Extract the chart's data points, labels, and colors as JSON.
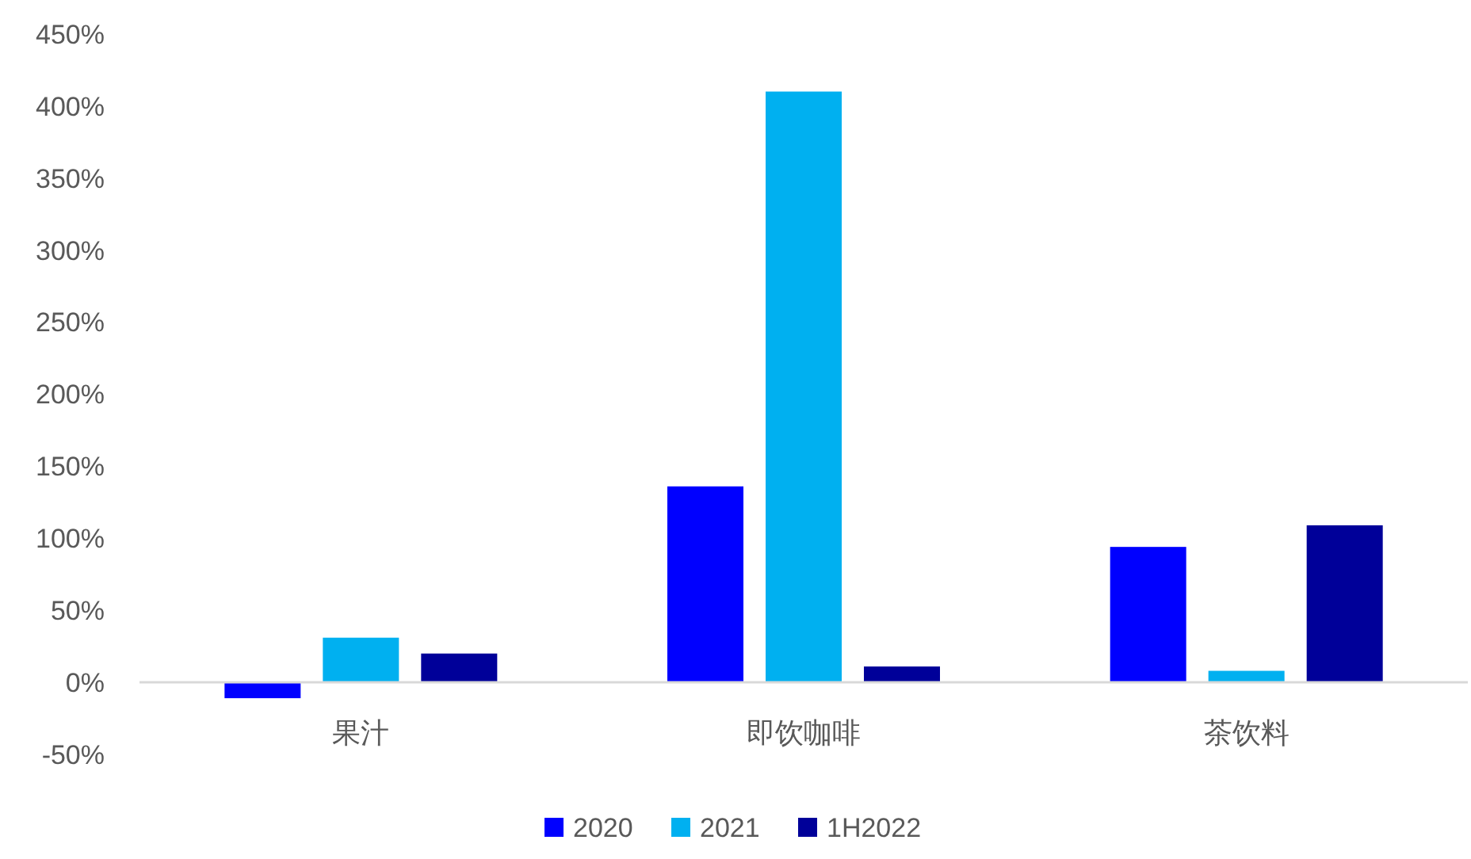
{
  "chart_data": {
    "type": "bar",
    "categories": [
      "果汁",
      "即饮咖啡",
      "茶饮料"
    ],
    "series": [
      {
        "name": "2020",
        "color": "#0000ff",
        "values": [
          -11,
          136,
          94
        ]
      },
      {
        "name": "2021",
        "color": "#00b0f0",
        "values": [
          31,
          410,
          8
        ]
      },
      {
        "name": "1H2022",
        "color": "#000099",
        "values": [
          20,
          11,
          109
        ]
      }
    ],
    "ylim": [
      -50,
      450
    ],
    "yticks": [
      {
        "value": -50,
        "label": "-50%"
      },
      {
        "value": 0,
        "label": "0%"
      },
      {
        "value": 50,
        "label": "50%"
      },
      {
        "value": 100,
        "label": "100%"
      },
      {
        "value": 150,
        "label": "150%"
      },
      {
        "value": 200,
        "label": "200%"
      },
      {
        "value": 250,
        "label": "250%"
      },
      {
        "value": 300,
        "label": "300%"
      },
      {
        "value": 350,
        "label": "350%"
      },
      {
        "value": 400,
        "label": "400%"
      },
      {
        "value": 450,
        "label": "450%"
      }
    ],
    "grid": false,
    "legend": "bottom"
  }
}
